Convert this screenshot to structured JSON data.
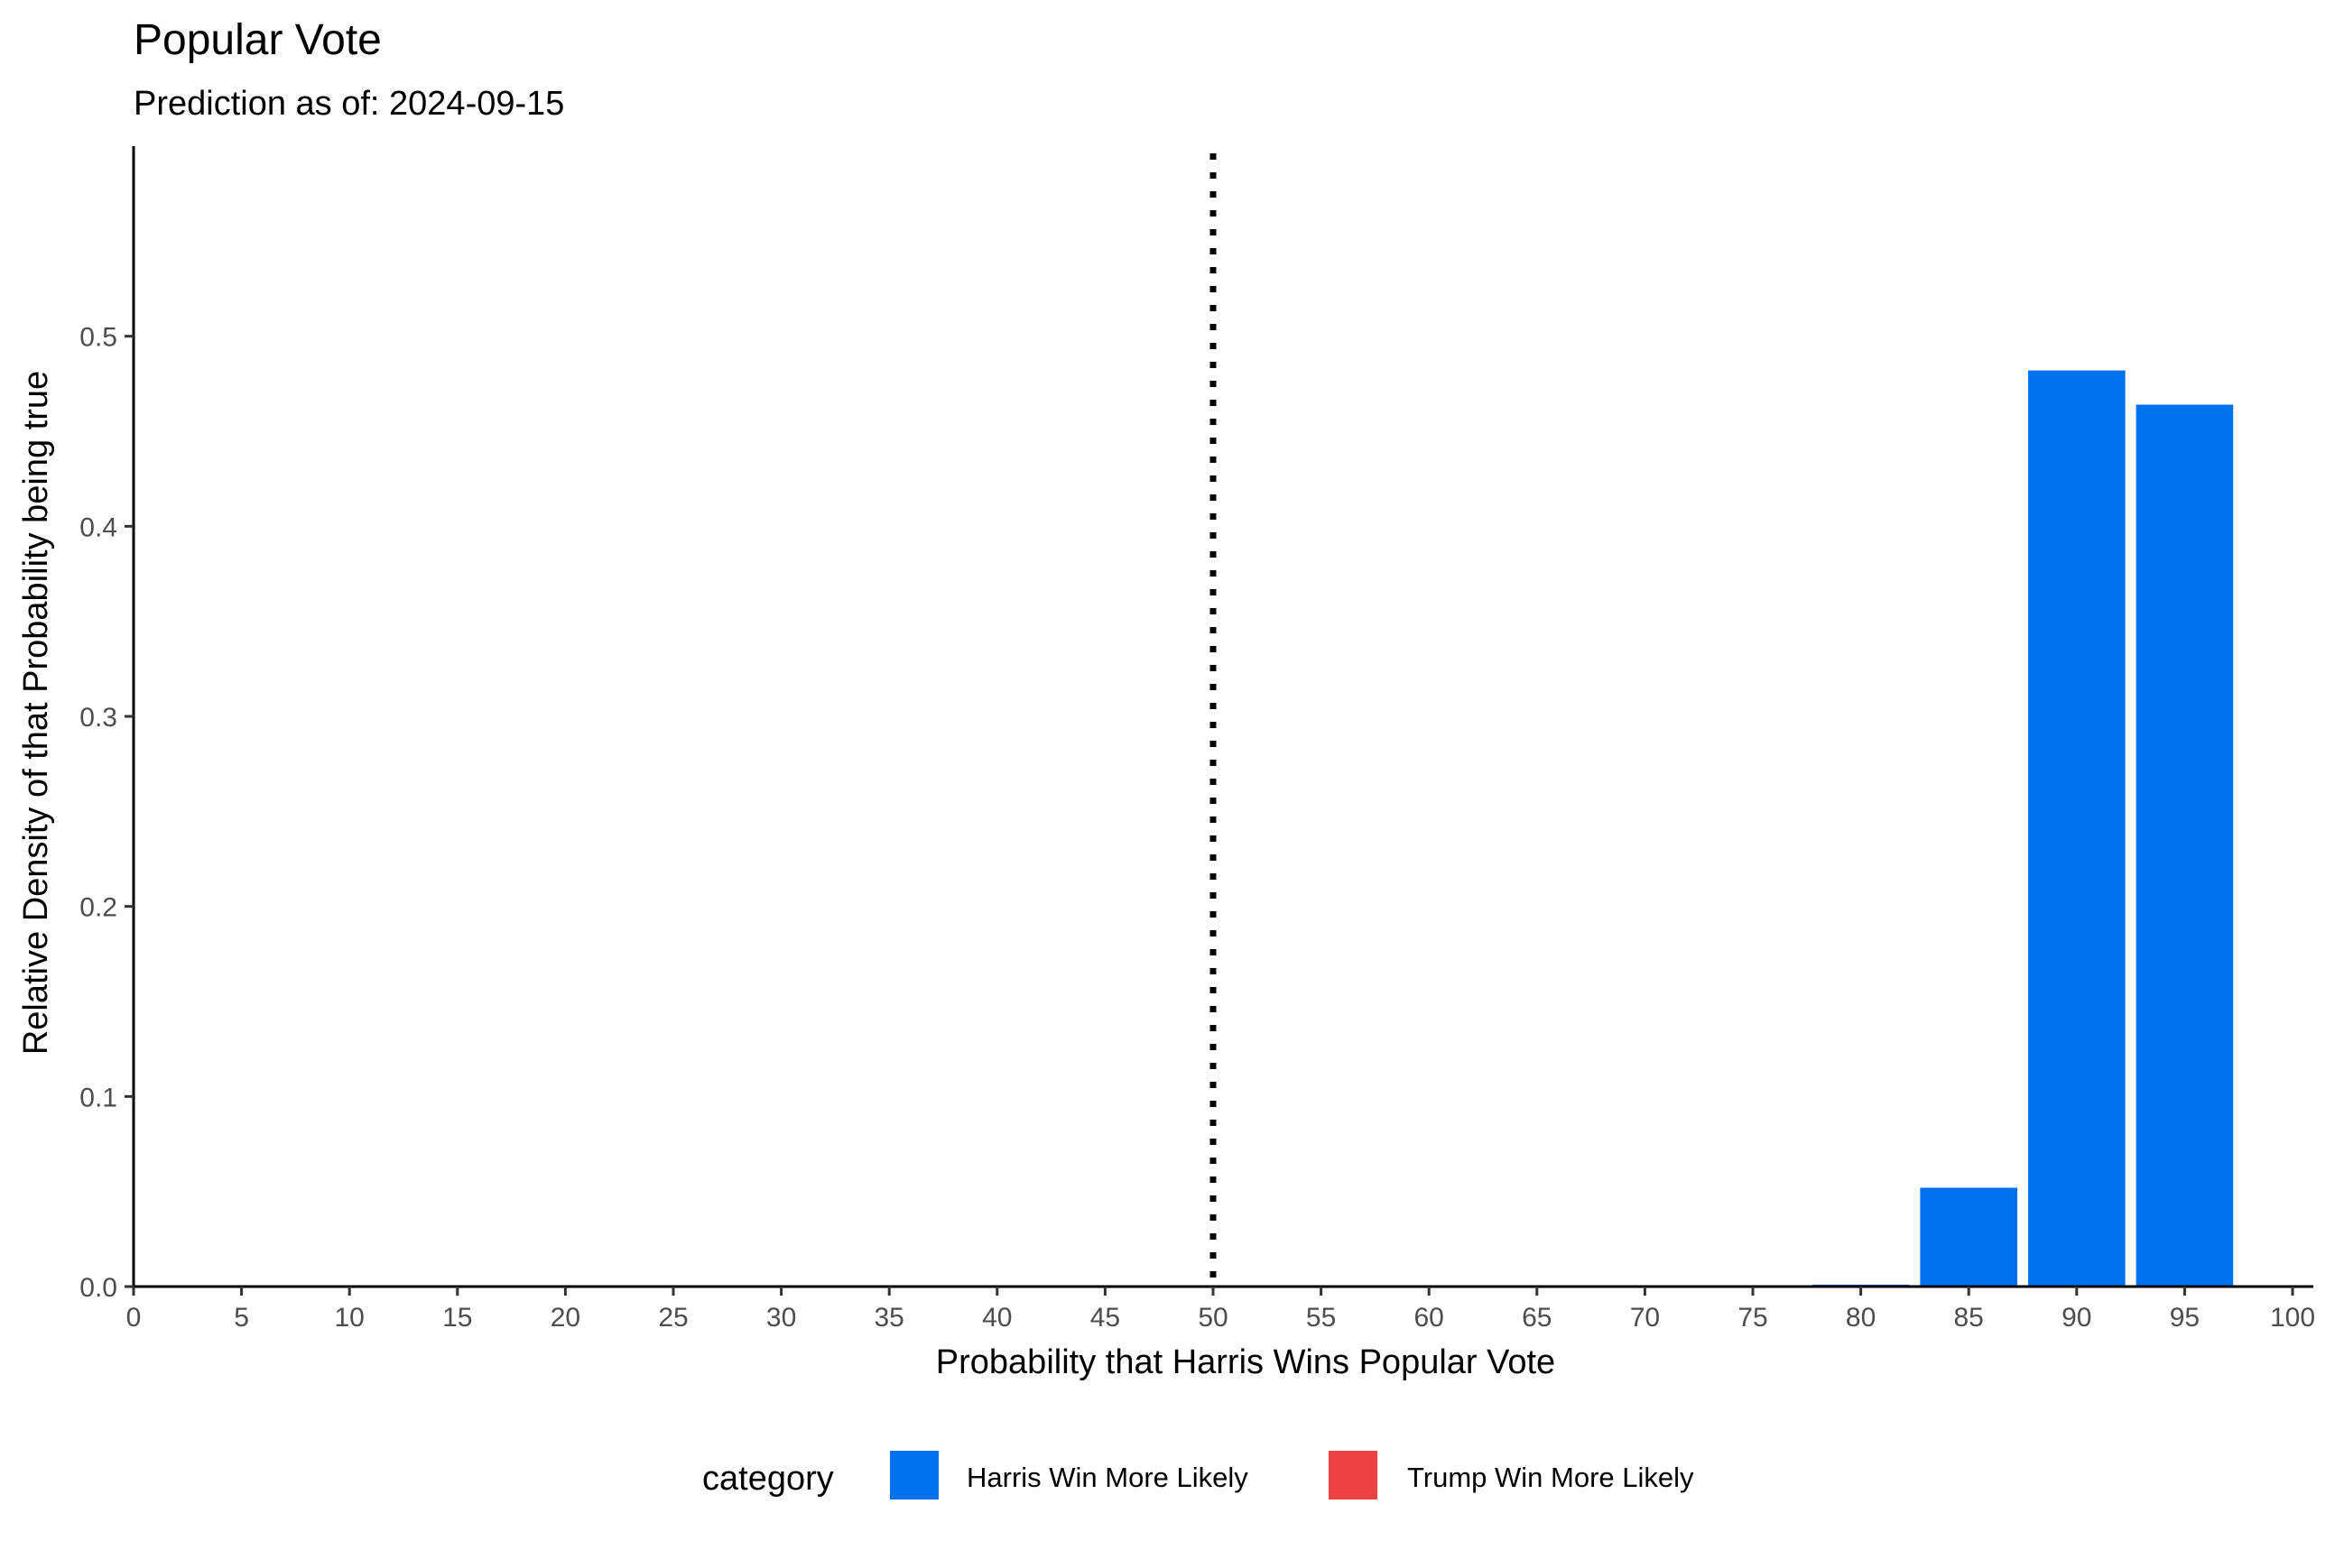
{
  "chart_data": {
    "type": "bar",
    "title": "Popular Vote",
    "subtitle": "Prediction as of: 2024-09-15",
    "xlabel": "Probability that Harris Wins Popular Vote",
    "ylabel": "Relative Density of that Probability being true",
    "xlim": [
      0,
      100
    ],
    "ylim": [
      0,
      0.6
    ],
    "x_ticks": [
      "0",
      "5",
      "10",
      "15",
      "20",
      "25",
      "30",
      "35",
      "40",
      "45",
      "50",
      "55",
      "60",
      "65",
      "70",
      "75",
      "80",
      "85",
      "90",
      "95",
      "100"
    ],
    "y_ticks": [
      "0.0",
      "0.1",
      "0.2",
      "0.3",
      "0.4",
      "0.5"
    ],
    "vline": {
      "x": 50,
      "style": "dotted"
    },
    "grid": false,
    "bar_width": 4.5,
    "bars": [
      {
        "x": 80,
        "value": 0.001,
        "category": "Harris Win More Likely"
      },
      {
        "x": 85,
        "value": 0.052,
        "category": "Harris Win More Likely"
      },
      {
        "x": 90,
        "value": 0.482,
        "category": "Harris Win More Likely"
      },
      {
        "x": 95,
        "value": 0.464,
        "category": "Harris Win More Likely"
      }
    ],
    "legend": {
      "title": "category",
      "placement": "bottom",
      "items": [
        {
          "label": "Harris Win More Likely",
          "color": "#0072EE"
        },
        {
          "label": "Trump Win More Likely",
          "color": "#EE4242"
        }
      ]
    }
  }
}
